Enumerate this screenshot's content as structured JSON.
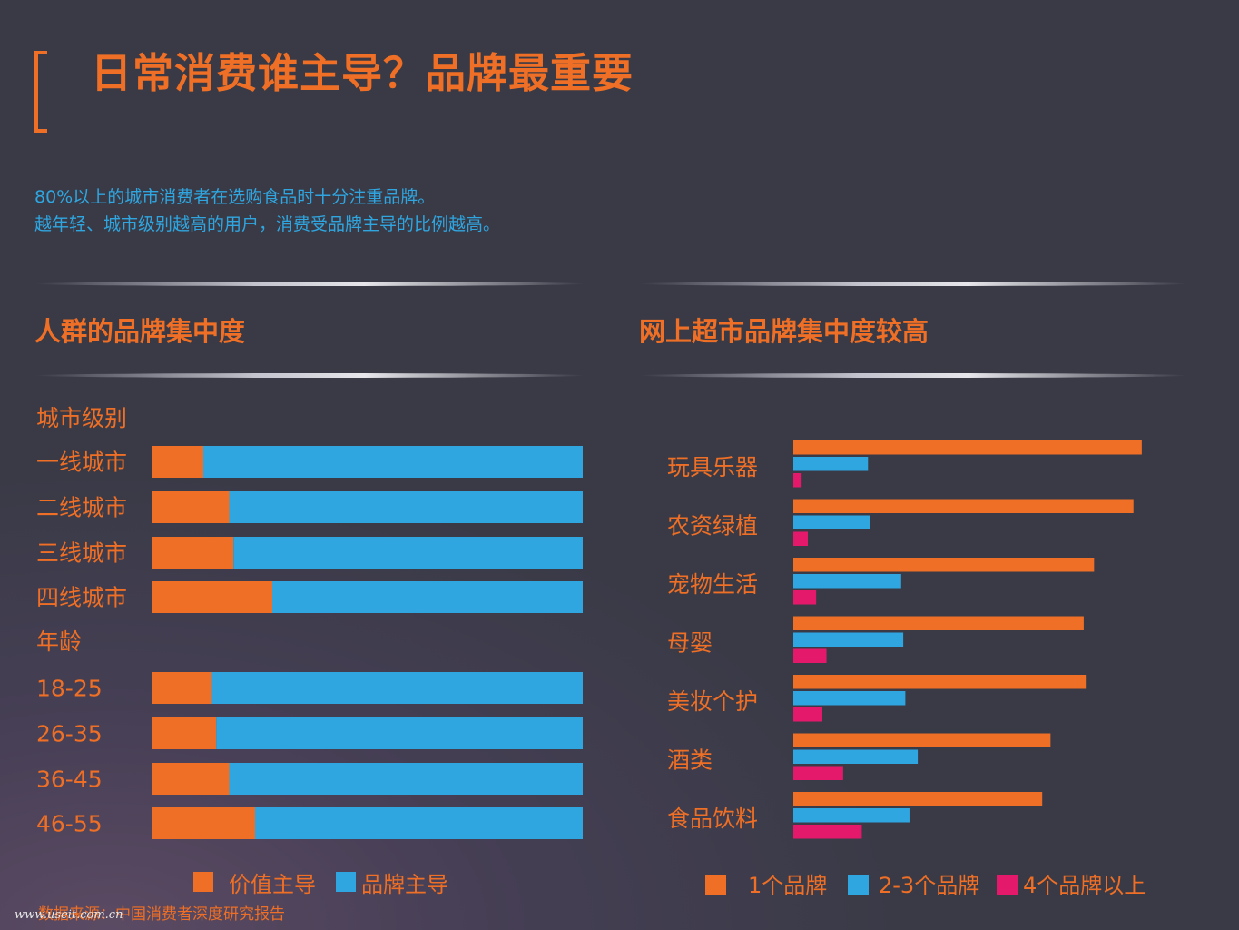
{
  "header": {
    "title": "日常消费谁主导？品牌最重要",
    "intro_line1": "80%以上的城市消费者在选购食品时十分注重品牌。",
    "intro_line2": "越年轻、城市级别越高的用户，消费受品牌主导的比例越高。"
  },
  "left_section": {
    "title": "人群的品牌集中度"
  },
  "right_section": {
    "title": "网上超市品牌集中度较高"
  },
  "source": "数据来源：中国消费者深度研究报告",
  "watermark": "www.useit.com.cn",
  "colors": {
    "orange": "#ee6f25",
    "blue": "#2fa6e0",
    "pink": "#e5196c"
  },
  "chart_data": [
    {
      "type": "bar",
      "orientation": "horizontal",
      "stacked": true,
      "groups": [
        {
          "label": "城市级别",
          "categories": [
            "一线城市",
            "二线城市",
            "三线城市",
            "四线城市"
          ]
        },
        {
          "label": "年龄",
          "categories": [
            "18-25",
            "26-35",
            "36-45",
            "46-55"
          ]
        }
      ],
      "categories": [
        "一线城市",
        "二线城市",
        "三线城市",
        "四线城市",
        "18-25",
        "26-35",
        "36-45",
        "46-55"
      ],
      "series": [
        {
          "name": "价值主导",
          "color": "#ee6f25",
          "values": [
            12,
            18,
            19,
            28,
            14,
            15,
            18,
            24
          ]
        },
        {
          "name": "品牌主导",
          "color": "#2fa6e0",
          "values": [
            88,
            82,
            81,
            72,
            86,
            85,
            82,
            76
          ]
        }
      ],
      "xlim": [
        0,
        100
      ],
      "legend": "bottom"
    },
    {
      "type": "bar",
      "orientation": "horizontal",
      "stacked": false,
      "categories": [
        "玩具乐器",
        "农资绿植",
        "宠物生活",
        "母婴",
        "美妆个护",
        "酒类",
        "食品饮料"
      ],
      "series": [
        {
          "name": "1个品牌",
          "color": "#ee6f25",
          "values": [
            84,
            82,
            72.5,
            70,
            70.5,
            62,
            60
          ]
        },
        {
          "name": "2-3个品牌",
          "color": "#2fa6e0",
          "values": [
            18,
            18.5,
            26,
            26.5,
            27,
            30,
            28
          ]
        },
        {
          "name": "4个品牌以上",
          "color": "#e5196c",
          "values": [
            2,
            3.5,
            5.5,
            8,
            7,
            12,
            16.5
          ]
        }
      ],
      "xlim": [
        0,
        100
      ],
      "legend": "bottom"
    }
  ]
}
